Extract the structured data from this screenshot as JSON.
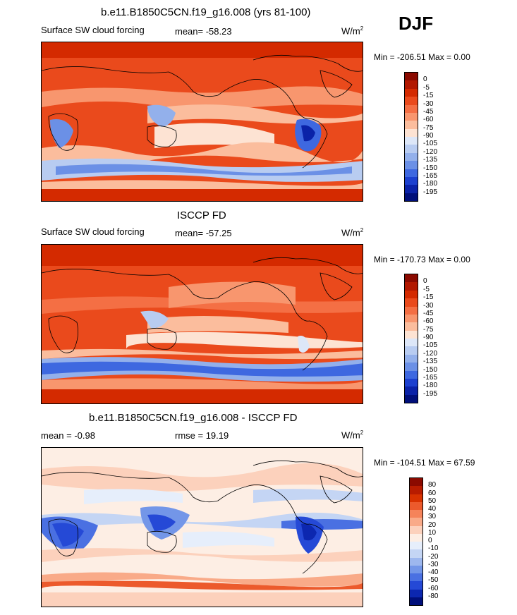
{
  "season": "DJF",
  "panels": [
    {
      "title": "b.e11.B1850C5CN.f19_g16.008 (yrs 81-100)",
      "left_label": "Surface SW cloud forcing",
      "center_label": "mean= -58.23",
      "units_base": "W/m",
      "units_exp": "2",
      "minmax": "Min = -206.51 Max =   0.00",
      "colorbar_labels": [
        "0",
        "-5",
        "-15",
        "-30",
        "-45",
        "-60",
        "-75",
        "-90",
        "-105",
        "-120",
        "-135",
        "-150",
        "-165",
        "-180",
        "-195"
      ]
    },
    {
      "title": "ISCCP FD",
      "left_label": "Surface SW cloud forcing",
      "center_label": "mean= -57.25",
      "units_base": "W/m",
      "units_exp": "2",
      "minmax": "Min = -170.73 Max =   0.00",
      "colorbar_labels": [
        "0",
        "-5",
        "-15",
        "-30",
        "-45",
        "-60",
        "-75",
        "-90",
        "-105",
        "-120",
        "-135",
        "-150",
        "-165",
        "-180",
        "-195"
      ]
    },
    {
      "title": "b.e11.B1850C5CN.f19_g16.008 - ISCCP FD",
      "left_label": "mean =  -0.98",
      "center_label": "rmse =  19.19",
      "units_base": "W/m",
      "units_exp": "2",
      "minmax": "Min = -104.51 Max =  67.59",
      "colorbar_labels": [
        "80",
        "60",
        "50",
        "40",
        "30",
        "20",
        "10",
        "0",
        "-10",
        "-20",
        "-30",
        "-40",
        "-50",
        "-60",
        "-80"
      ]
    }
  ],
  "colors": {
    "abs_scale": [
      "#8b0a00",
      "#b21800",
      "#d42a00",
      "#ea4a1c",
      "#f46f44",
      "#f8966e",
      "#fbbd9d",
      "#fde3d3",
      "#dde7f8",
      "#b8ccf1",
      "#93b0eb",
      "#6b90e6",
      "#3e68e0",
      "#1c40cf",
      "#0a22a8",
      "#000f7a"
    ],
    "diff_scale": [
      "#8b0a00",
      "#b81c00",
      "#d83200",
      "#ec5a2c",
      "#f5835a",
      "#f9aa88",
      "#fcd1bc",
      "#fdeee4",
      "#e6eefb",
      "#c4d5f4",
      "#9db7ee",
      "#7396e8",
      "#4a70e2",
      "#2549d6",
      "#0c27b0",
      "#000f7a"
    ]
  }
}
